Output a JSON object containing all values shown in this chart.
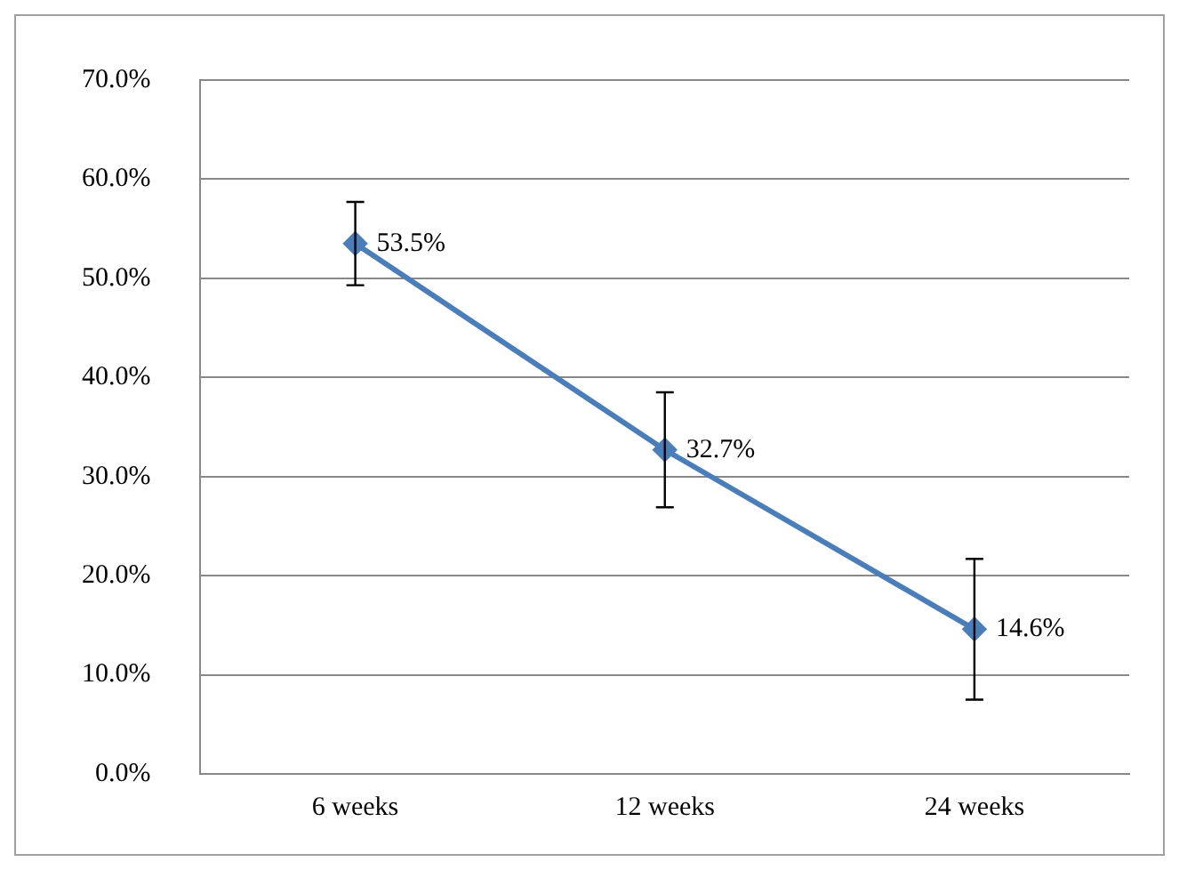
{
  "chart_data": {
    "type": "line",
    "categories": [
      "6 weeks",
      "12 weeks",
      "24 weeks"
    ],
    "series": [
      {
        "color": "#4a7ebb",
        "values": [
          53.5,
          32.7,
          14.6
        ],
        "errors": [
          4.2,
          5.8,
          7.1
        ]
      }
    ],
    "ylim": [
      0,
      70
    ],
    "yticks": [
      {
        "value": 0,
        "label": "0.0%"
      },
      {
        "value": 10,
        "label": "10.0%"
      },
      {
        "value": 20,
        "label": "20.0%"
      },
      {
        "value": 30,
        "label": "30.0%"
      },
      {
        "value": 40,
        "label": "40.0%"
      },
      {
        "value": 50,
        "label": "50.0%"
      },
      {
        "value": 60,
        "label": "60.0%"
      },
      {
        "value": 70,
        "label": "70.0%"
      }
    ],
    "value_labels": [
      "53.5%",
      "32.7%",
      "14.6%"
    ],
    "grid": "y",
    "legend": false,
    "marker": "diamond",
    "line_style": "solid"
  }
}
